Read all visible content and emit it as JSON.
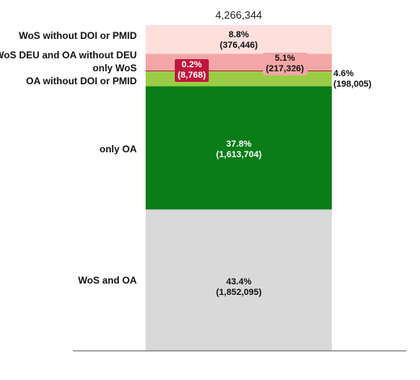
{
  "chart_data": {
    "type": "bar",
    "stacked": true,
    "total_label": "4,266,344",
    "total": 4266344,
    "categories": [
      "WoS and OA",
      "only OA",
      "OA without DOI or PMID",
      "only WoS",
      "WoS DEU and OA without DEU",
      "WoS without DOI or PMID"
    ],
    "segments": [
      {
        "category": "WoS and OA",
        "value": 1852095,
        "pct_label": "43.4%",
        "count_label": "(1,852,095)",
        "color": "#d9d9d9",
        "label_color": "#111111"
      },
      {
        "category": "only OA",
        "value": 1613704,
        "pct_label": "37.8%",
        "count_label": "(1,613,704)",
        "color": "#0a7d18",
        "label_color": "#ffffff"
      },
      {
        "category": "OA without DOI or PMID",
        "value": 198005,
        "pct_label": "4.6%",
        "count_label": "(198,005)",
        "color": "#9acd45",
        "label_color": "#111111"
      },
      {
        "category": "only WoS",
        "value": 8768,
        "pct_label": "0.2%",
        "count_label": "(8,768)",
        "color": "#c0163b",
        "label_color": "#ffffff"
      },
      {
        "category": "WoS DEU and OA without DEU",
        "value": 217326,
        "pct_label": "5.1%",
        "count_label": "(217,326)",
        "color": "#f4a6a6",
        "label_color": "#111111"
      },
      {
        "category": "WoS without DOI or PMID",
        "value": 376446,
        "pct_label": "8.8%",
        "count_label": "(376,446)",
        "color": "#fde0dc",
        "label_color": "#111111"
      }
    ],
    "xlabel": "",
    "ylabel": "",
    "grid": false,
    "legend": "none"
  }
}
